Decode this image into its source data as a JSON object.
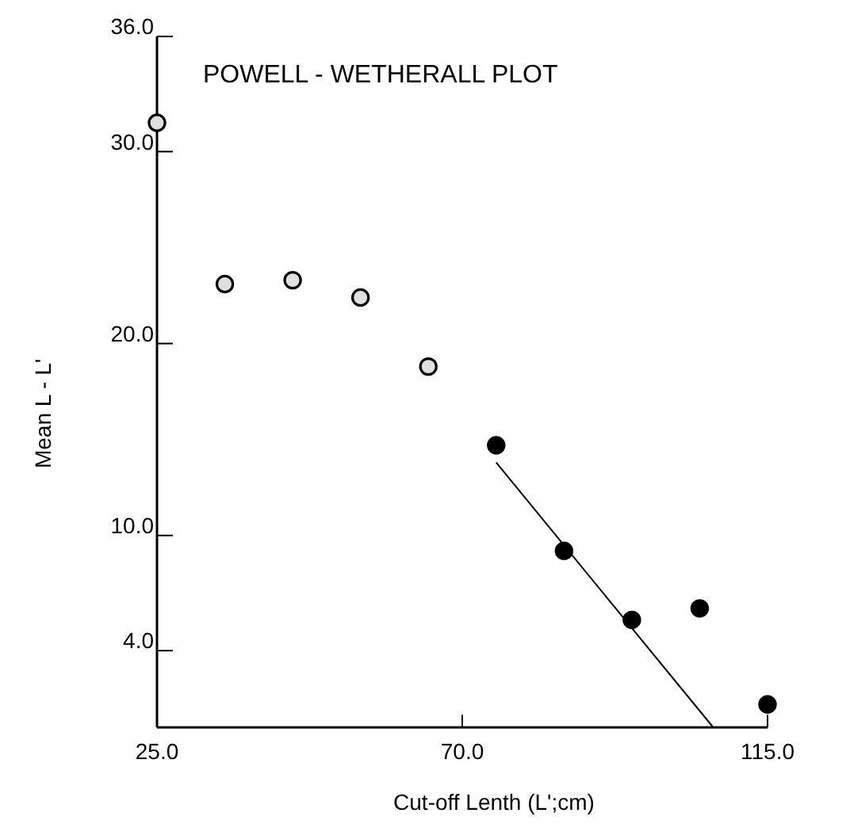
{
  "chart_data": {
    "type": "scatter",
    "title": "POWELL - WETHERALL PLOT",
    "xlabel": "Cut-off Lenth (L';cm)",
    "ylabel": "Mean L - L'",
    "xlim": [
      25,
      115
    ],
    "xticks": [
      {
        "value": 25,
        "label": "25.0"
      },
      {
        "value": 70,
        "label": "70.0"
      },
      {
        "value": 115,
        "label": "115.0"
      }
    ],
    "ylim": [
      0,
      36
    ],
    "yticks": [
      {
        "value": 4,
        "label": "4.0"
      },
      {
        "value": 10,
        "label": "10.0"
      },
      {
        "value": 20,
        "label": "20.0"
      },
      {
        "value": 30,
        "label": "30.0"
      },
      {
        "value": 36,
        "label": "36.0"
      }
    ],
    "grid": false,
    "series": [
      {
        "type": "scatter",
        "marker": "circle",
        "color": "#e0e0e0",
        "x": [
          25,
          35,
          45,
          55,
          65
        ],
        "values": [
          31.5,
          23.1,
          23.3,
          22.4,
          18.8
        ]
      },
      {
        "type": "scatter",
        "marker": "circle",
        "color": "#000000",
        "x": [
          75,
          85,
          95,
          105,
          115
        ],
        "values": [
          14.7,
          9.2,
          5.6,
          6.2,
          1.2
        ]
      },
      {
        "type": "line",
        "color": "#000000",
        "line_style": "solid",
        "x": [
          75,
          107
        ],
        "values": [
          13.8,
          0
        ]
      }
    ]
  }
}
